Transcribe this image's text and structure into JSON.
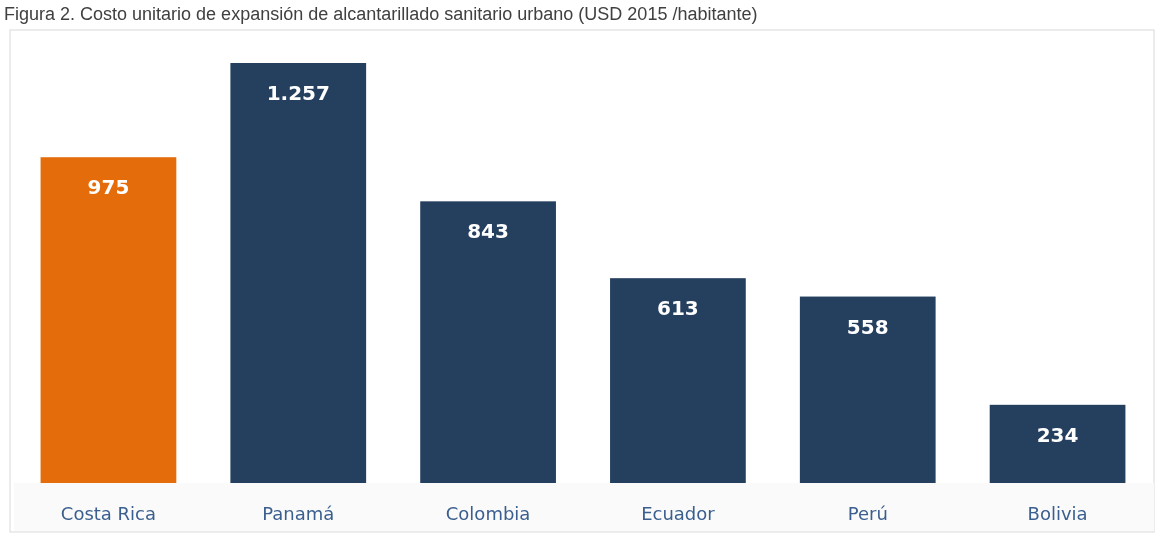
{
  "chart_data": {
    "type": "bar",
    "title": "Figura 2. Costo unitario de expansión de alcantarillado sanitario urbano (USD 2015 /habitante)",
    "categories": [
      "Costa Rica",
      "Panamá",
      "Colombia",
      "Ecuador",
      "Perú",
      "Bolivia"
    ],
    "values": [
      975,
      1257,
      843,
      613,
      558,
      234
    ],
    "colors": [
      "#e46c0a",
      "#253f5f",
      "#253f5f",
      "#253f5f",
      "#253f5f",
      "#253f5f"
    ],
    "value_labels": [
      "975",
      "1.257",
      "843",
      "613",
      "558",
      "234"
    ]
  }
}
